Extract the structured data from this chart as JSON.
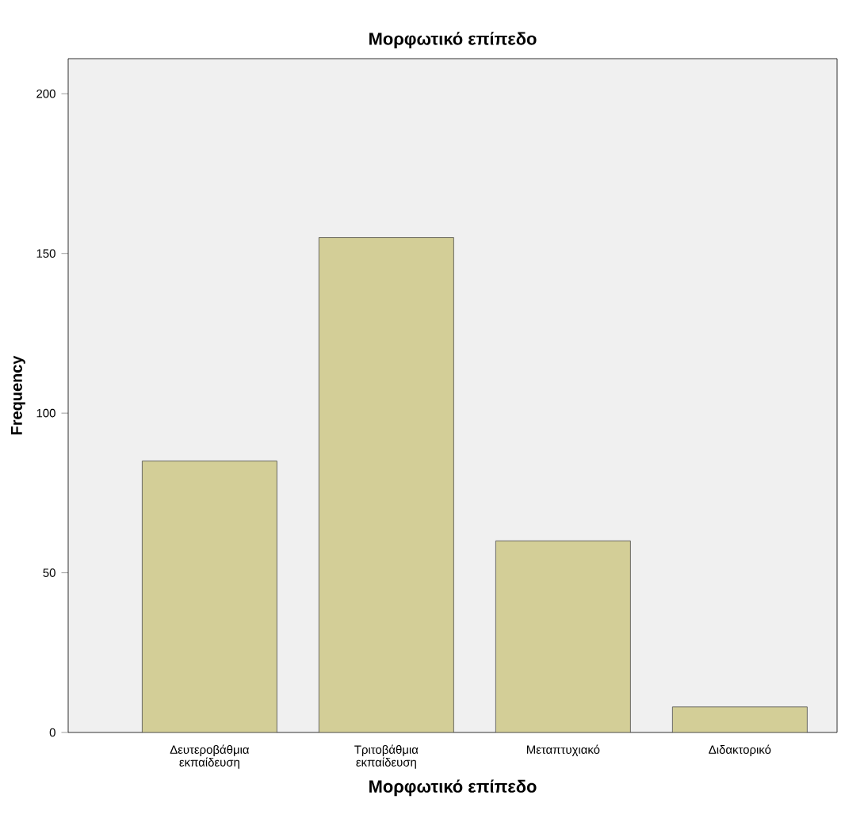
{
  "chart_data": {
    "type": "bar",
    "title": "Μορφωτικό επίπεδο",
    "xlabel": "Μορφωτικό επίπεδο",
    "ylabel": "Frequency",
    "categories": [
      "Δευτεροβάθμια εκπαίδευση",
      "Τριτοβάθμια εκπαίδευση",
      "Μεταπτυχιακό",
      "Διδακτορικό"
    ],
    "values": [
      85,
      155,
      60,
      8
    ],
    "color": "#d3ce97",
    "ylim": [
      0,
      211
    ],
    "yticks": [
      0,
      50,
      100,
      150,
      200
    ]
  }
}
